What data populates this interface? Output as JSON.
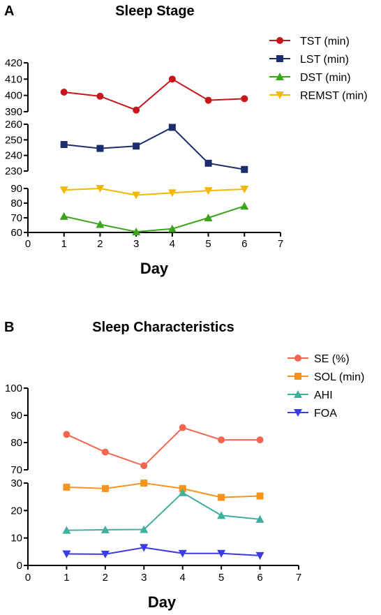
{
  "chart_data": [
    {
      "panel": "A",
      "type": "line",
      "title": "Sleep Stage",
      "xlabel": "Day",
      "ylabel": "",
      "x": [
        1,
        2,
        3,
        4,
        5,
        6
      ],
      "xlim": [
        0,
        7
      ],
      "xticks": [
        "0",
        "1",
        "2",
        "3",
        "4",
        "5",
        "6",
        "7"
      ],
      "segments": [
        {
          "ylim": [
            60,
            90
          ],
          "ticks": [
            "60",
            "70",
            "80",
            "90"
          ]
        },
        {
          "ylim": [
            230,
            260
          ],
          "ticks": [
            "230",
            "240",
            "250",
            "260"
          ]
        },
        {
          "ylim": [
            390,
            420
          ],
          "ticks": [
            "390",
            "400",
            "410",
            "420"
          ]
        }
      ],
      "series": [
        {
          "name": "TST (min)",
          "values": [
            402,
            399.5,
            391,
            410,
            397,
            398
          ],
          "color": "#c8161b",
          "marker": "circle",
          "segment": 2
        },
        {
          "name": "LST (min)",
          "values": [
            247,
            244.5,
            246,
            258,
            235,
            231
          ],
          "color": "#1c2d6b",
          "marker": "square",
          "segment": 1
        },
        {
          "name": "DST (min)",
          "values": [
            71,
            65.5,
            60.5,
            62.5,
            70,
            78
          ],
          "color": "#3aa41a",
          "marker": "triangle-up",
          "segment": 0
        },
        {
          "name": "REMST (min)",
          "values": [
            89,
            90,
            85.5,
            87,
            88.5,
            89.5
          ],
          "color": "#f5b800",
          "marker": "triangle-down",
          "segment": 0
        }
      ],
      "legend": "top-right"
    },
    {
      "panel": "B",
      "type": "line",
      "title": "Sleep Characteristics",
      "xlabel": "Day",
      "ylabel": "",
      "x": [
        1,
        2,
        3,
        4,
        5,
        6
      ],
      "xlim": [
        0,
        7
      ],
      "xticks": [
        "0",
        "1",
        "2",
        "3",
        "4",
        "5",
        "6",
        "7"
      ],
      "segments": [
        {
          "ylim": [
            0,
            30
          ],
          "ticks": [
            "0",
            "10",
            "20",
            "30"
          ]
        },
        {
          "ylim": [
            70,
            100
          ],
          "ticks": [
            "70",
            "80",
            "90",
            "100"
          ]
        }
      ],
      "series": [
        {
          "name": "SE (%)",
          "values": [
            83,
            76.5,
            71.5,
            85.5,
            81,
            81
          ],
          "color": "#f26652",
          "marker": "circle",
          "segment": 1
        },
        {
          "name": "SOL (min)",
          "values": [
            28.5,
            28,
            30,
            28,
            24.8,
            25.3
          ],
          "color": "#f7941d",
          "marker": "square",
          "segment": 0
        },
        {
          "name": "AHI",
          "values": [
            12.8,
            13,
            13.1,
            26.5,
            18.2,
            16.8
          ],
          "color": "#3fb0a0",
          "marker": "triangle-up",
          "segment": 0
        },
        {
          "name": "FOA",
          "values": [
            4.2,
            4.1,
            6.5,
            4.4,
            4.4,
            3.6
          ],
          "color": "#3a3ce6",
          "marker": "triangle-down",
          "segment": 0
        }
      ],
      "legend": "top-right"
    }
  ]
}
